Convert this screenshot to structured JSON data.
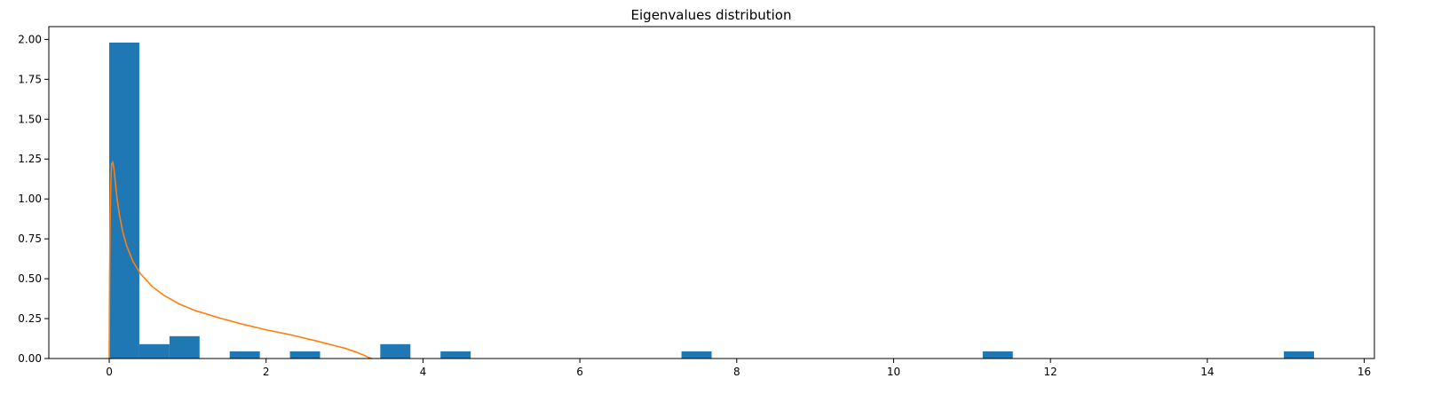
{
  "chart_data": {
    "type": "bar",
    "title": "Eigenvalues distribution",
    "xlabel": "",
    "ylabel": "",
    "xlim": [
      -0.77,
      16.13
    ],
    "ylim": [
      0,
      2.08
    ],
    "xticks": [
      0,
      2,
      4,
      6,
      8,
      10,
      12,
      14,
      16
    ],
    "yticks": [
      0.0,
      0.25,
      0.5,
      0.75,
      1.0,
      1.25,
      1.5,
      1.75,
      2.0
    ],
    "xtick_labels": [
      "0",
      "2",
      "4",
      "6",
      "8",
      "10",
      "12",
      "14",
      "16"
    ],
    "ytick_labels": [
      "0.00",
      "0.25",
      "0.50",
      "0.75",
      "1.00",
      "1.25",
      "1.50",
      "1.75",
      "2.00"
    ],
    "grid": false,
    "histogram": {
      "bin_edges": [
        0.0,
        0.384,
        0.768,
        1.152,
        1.536,
        1.92,
        2.304,
        2.688,
        3.072,
        3.456,
        3.84,
        4.224,
        4.608,
        4.992,
        5.376,
        5.76,
        6.144,
        6.528,
        6.912,
        7.296,
        7.68,
        8.064,
        8.448,
        8.832,
        9.216,
        9.6,
        9.984,
        10.368,
        10.752,
        11.136,
        11.52,
        11.904,
        12.288,
        12.672,
        13.056,
        13.44,
        13.824,
        14.208,
        14.592,
        14.976,
        15.36
      ],
      "values": [
        1.98,
        0.09,
        0.14,
        0.0,
        0.045,
        0.0,
        0.045,
        0.0,
        0.0,
        0.09,
        0.0,
        0.045,
        0.0,
        0.0,
        0.0,
        0.0,
        0.0,
        0.0,
        0.0,
        0.045,
        0.0,
        0.0,
        0.0,
        0.0,
        0.0,
        0.0,
        0.0,
        0.0,
        0.0,
        0.045,
        0.0,
        0.0,
        0.0,
        0.0,
        0.0,
        0.0,
        0.0,
        0.0,
        0.0,
        0.045
      ],
      "color": "#1f77b4"
    },
    "curve": {
      "x": [
        0.0,
        0.005,
        0.01,
        0.02,
        0.03,
        0.045,
        0.06,
        0.075,
        0.1,
        0.13,
        0.17,
        0.22,
        0.3,
        0.4,
        0.55,
        0.7,
        0.9,
        1.1,
        1.4,
        1.7,
        2.0,
        2.3,
        2.6,
        2.8,
        3.0,
        3.15,
        3.25,
        3.3,
        3.35
      ],
      "y": [
        0.0,
        0.5,
        0.8,
        1.1,
        1.22,
        1.23,
        1.19,
        1.12,
        1.0,
        0.9,
        0.8,
        0.71,
        0.61,
        0.53,
        0.45,
        0.395,
        0.34,
        0.3,
        0.255,
        0.215,
        0.18,
        0.15,
        0.115,
        0.09,
        0.065,
        0.04,
        0.02,
        0.008,
        0.0
      ],
      "color": "#ff7f0e"
    }
  }
}
